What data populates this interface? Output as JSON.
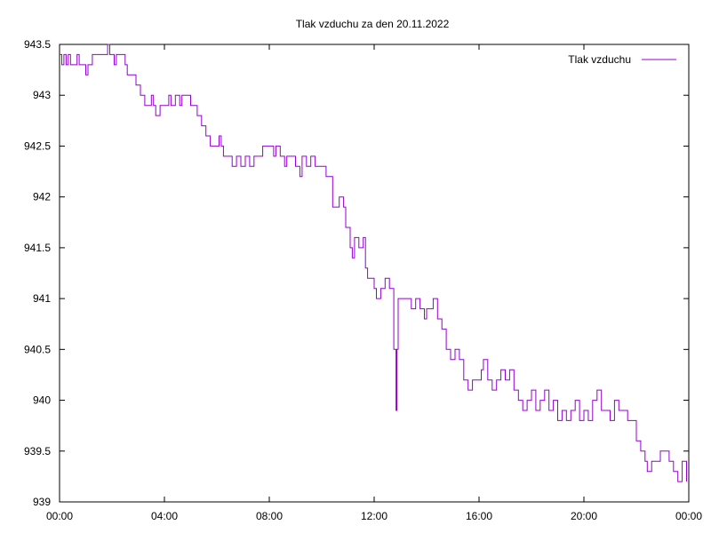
{
  "chart_data": {
    "type": "line",
    "title": "Tlak vzduchu za den 20.11.2022",
    "xlabel": "",
    "ylabel": "",
    "xlim": [
      "00:00",
      "24:00"
    ],
    "ylim": [
      939,
      943.5
    ],
    "x_ticks": [
      "00:00",
      "04:00",
      "08:00",
      "12:00",
      "16:00",
      "20:00",
      "00:00"
    ],
    "y_ticks": [
      "939",
      "939.5",
      "940",
      "940.5",
      "941",
      "941.5",
      "942",
      "942.5",
      "943",
      "943.5"
    ],
    "grid": false,
    "legend_position": "top-right",
    "series": [
      {
        "name": "Tlak vzduchu",
        "color": "#9400d3",
        "points": [
          [
            "00:00",
            943.4
          ],
          [
            "00:05",
            943.3
          ],
          [
            "00:10",
            943.4
          ],
          [
            "00:15",
            943.3
          ],
          [
            "00:20",
            943.4
          ],
          [
            "00:25",
            943.3
          ],
          [
            "00:30",
            943.3
          ],
          [
            "00:40",
            943.4
          ],
          [
            "00:45",
            943.3
          ],
          [
            "00:55",
            943.3
          ],
          [
            "01:00",
            943.2
          ],
          [
            "01:05",
            943.3
          ],
          [
            "01:15",
            943.4
          ],
          [
            "01:30",
            943.4
          ],
          [
            "01:45",
            943.4
          ],
          [
            "01:50",
            943.5
          ],
          [
            "01:55",
            943.4
          ],
          [
            "02:05",
            943.3
          ],
          [
            "02:10",
            943.4
          ],
          [
            "02:20",
            943.4
          ],
          [
            "02:30",
            943.3
          ],
          [
            "02:35",
            943.2
          ],
          [
            "02:45",
            943.2
          ],
          [
            "02:55",
            943.1
          ],
          [
            "03:05",
            943.0
          ],
          [
            "03:15",
            942.9
          ],
          [
            "03:25",
            942.9
          ],
          [
            "03:30",
            943.0
          ],
          [
            "03:35",
            942.9
          ],
          [
            "03:40",
            942.8
          ],
          [
            "03:50",
            942.9
          ],
          [
            "04:00",
            942.9
          ],
          [
            "04:10",
            943.0
          ],
          [
            "04:15",
            942.9
          ],
          [
            "04:25",
            943.0
          ],
          [
            "04:35",
            942.9
          ],
          [
            "04:40",
            943.0
          ],
          [
            "04:50",
            943.0
          ],
          [
            "05:00",
            942.9
          ],
          [
            "05:10",
            942.9
          ],
          [
            "05:15",
            942.8
          ],
          [
            "05:25",
            942.7
          ],
          [
            "05:35",
            942.6
          ],
          [
            "05:45",
            942.5
          ],
          [
            "06:00",
            942.5
          ],
          [
            "06:05",
            942.6
          ],
          [
            "06:10",
            942.5
          ],
          [
            "06:15",
            942.4
          ],
          [
            "06:25",
            942.4
          ],
          [
            "06:35",
            942.3
          ],
          [
            "06:45",
            942.4
          ],
          [
            "06:55",
            942.3
          ],
          [
            "07:05",
            942.4
          ],
          [
            "07:15",
            942.3
          ],
          [
            "07:25",
            942.4
          ],
          [
            "07:35",
            942.4
          ],
          [
            "07:45",
            942.5
          ],
          [
            "08:00",
            942.5
          ],
          [
            "08:10",
            942.4
          ],
          [
            "08:15",
            942.5
          ],
          [
            "08:25",
            942.4
          ],
          [
            "08:35",
            942.3
          ],
          [
            "08:40",
            942.4
          ],
          [
            "08:50",
            942.4
          ],
          [
            "09:00",
            942.3
          ],
          [
            "09:10",
            942.2
          ],
          [
            "09:15",
            942.4
          ],
          [
            "09:25",
            942.3
          ],
          [
            "09:35",
            942.4
          ],
          [
            "09:45",
            942.3
          ],
          [
            "10:00",
            942.3
          ],
          [
            "10:10",
            942.2
          ],
          [
            "10:20",
            942.2
          ],
          [
            "10:25",
            941.9
          ],
          [
            "10:35",
            941.9
          ],
          [
            "10:40",
            942.0
          ],
          [
            "10:50",
            941.9
          ],
          [
            "10:55",
            941.7
          ],
          [
            "11:05",
            941.5
          ],
          [
            "11:10",
            941.4
          ],
          [
            "11:15",
            941.6
          ],
          [
            "11:25",
            941.5
          ],
          [
            "11:35",
            941.6
          ],
          [
            "11:40",
            941.3
          ],
          [
            "11:45",
            941.2
          ],
          [
            "11:55",
            941.2
          ],
          [
            "12:00",
            941.1
          ],
          [
            "12:05",
            941.0
          ],
          [
            "12:15",
            941.1
          ],
          [
            "12:25",
            941.2
          ],
          [
            "12:30",
            941.2
          ],
          [
            "12:35",
            941.1
          ],
          [
            "12:40",
            941.1
          ],
          [
            "12:45",
            940.5
          ],
          [
            "12:50",
            939.9
          ],
          [
            "12:52",
            940.5
          ],
          [
            "12:55",
            941.0
          ],
          [
            "13:05",
            941.0
          ],
          [
            "13:15",
            941.0
          ],
          [
            "13:25",
            940.9
          ],
          [
            "13:35",
            941.0
          ],
          [
            "13:45",
            940.9
          ],
          [
            "13:55",
            940.8
          ],
          [
            "14:00",
            940.9
          ],
          [
            "14:10",
            940.9
          ],
          [
            "14:15",
            941.0
          ],
          [
            "14:25",
            940.8
          ],
          [
            "14:35",
            940.7
          ],
          [
            "14:45",
            940.5
          ],
          [
            "14:55",
            940.4
          ],
          [
            "15:05",
            940.5
          ],
          [
            "15:15",
            940.4
          ],
          [
            "15:25",
            940.2
          ],
          [
            "15:35",
            940.1
          ],
          [
            "15:45",
            940.2
          ],
          [
            "15:55",
            940.2
          ],
          [
            "16:05",
            940.3
          ],
          [
            "16:10",
            940.4
          ],
          [
            "16:20",
            940.2
          ],
          [
            "16:30",
            940.1
          ],
          [
            "16:40",
            940.2
          ],
          [
            "16:50",
            940.3
          ],
          [
            "17:00",
            940.2
          ],
          [
            "17:10",
            940.3
          ],
          [
            "17:20",
            940.1
          ],
          [
            "17:30",
            940.0
          ],
          [
            "17:40",
            939.9
          ],
          [
            "17:50",
            940.0
          ],
          [
            "18:00",
            940.1
          ],
          [
            "18:10",
            939.9
          ],
          [
            "18:20",
            940.0
          ],
          [
            "18:30",
            940.1
          ],
          [
            "18:40",
            939.9
          ],
          [
            "18:50",
            940.0
          ],
          [
            "19:00",
            939.8
          ],
          [
            "19:10",
            939.9
          ],
          [
            "19:20",
            939.8
          ],
          [
            "19:30",
            939.9
          ],
          [
            "19:40",
            940.0
          ],
          [
            "19:50",
            939.8
          ],
          [
            "20:00",
            939.9
          ],
          [
            "20:10",
            939.8
          ],
          [
            "20:20",
            940.0
          ],
          [
            "20:30",
            940.1
          ],
          [
            "20:40",
            939.9
          ],
          [
            "20:50",
            939.9
          ],
          [
            "21:00",
            939.8
          ],
          [
            "21:10",
            940.0
          ],
          [
            "21:20",
            939.9
          ],
          [
            "21:30",
            939.9
          ],
          [
            "21:40",
            939.8
          ],
          [
            "21:50",
            939.8
          ],
          [
            "22:00",
            939.6
          ],
          [
            "22:10",
            939.5
          ],
          [
            "22:20",
            939.4
          ],
          [
            "22:25",
            939.3
          ],
          [
            "22:35",
            939.4
          ],
          [
            "22:45",
            939.4
          ],
          [
            "22:55",
            939.5
          ],
          [
            "23:05",
            939.5
          ],
          [
            "23:15",
            939.4
          ],
          [
            "23:25",
            939.3
          ],
          [
            "23:35",
            939.2
          ],
          [
            "23:45",
            939.4
          ],
          [
            "23:55",
            939.2
          ]
        ]
      }
    ]
  }
}
